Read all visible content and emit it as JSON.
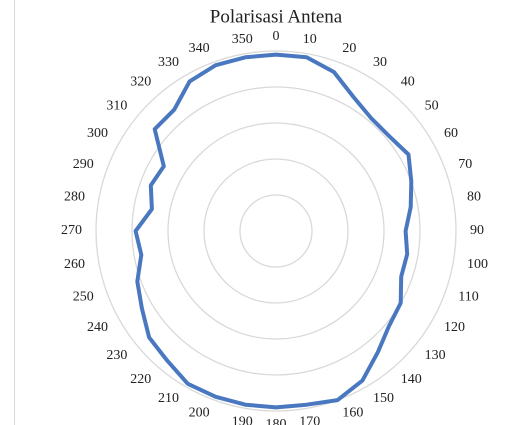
{
  "chart_data": {
    "type": "radar",
    "title": "Polarisasi Antena",
    "categories": [
      "0",
      "10",
      "20",
      "30",
      "40",
      "50",
      "60",
      "70",
      "80",
      "90",
      "100",
      "110",
      "120",
      "130",
      "140",
      "150",
      "160",
      "170",
      "180",
      "190",
      "200",
      "210",
      "220",
      "230",
      "240",
      "250",
      "260",
      "270",
      "280",
      "290",
      "300",
      "310",
      "320",
      "330",
      "340",
      "350"
    ],
    "values": [
      4.9,
      4.9,
      4.7,
      4.3,
      4.1,
      4.1,
      4.25,
      4.0,
      3.8,
      3.6,
      3.7,
      3.7,
      4.0,
      4.1,
      4.4,
      4.8,
      5.0,
      4.9,
      4.9,
      4.9,
      4.9,
      4.9,
      4.7,
      4.6,
      4.3,
      4.1,
      3.8,
      3.9,
      3.5,
      3.7,
      3.6,
      4.4,
      4.4,
      4.8,
      4.9,
      4.9
    ],
    "color": "#4a78c0",
    "ylim": [
      0,
      5
    ],
    "yticks": [
      1,
      2,
      3,
      4,
      5
    ],
    "grid": true
  }
}
